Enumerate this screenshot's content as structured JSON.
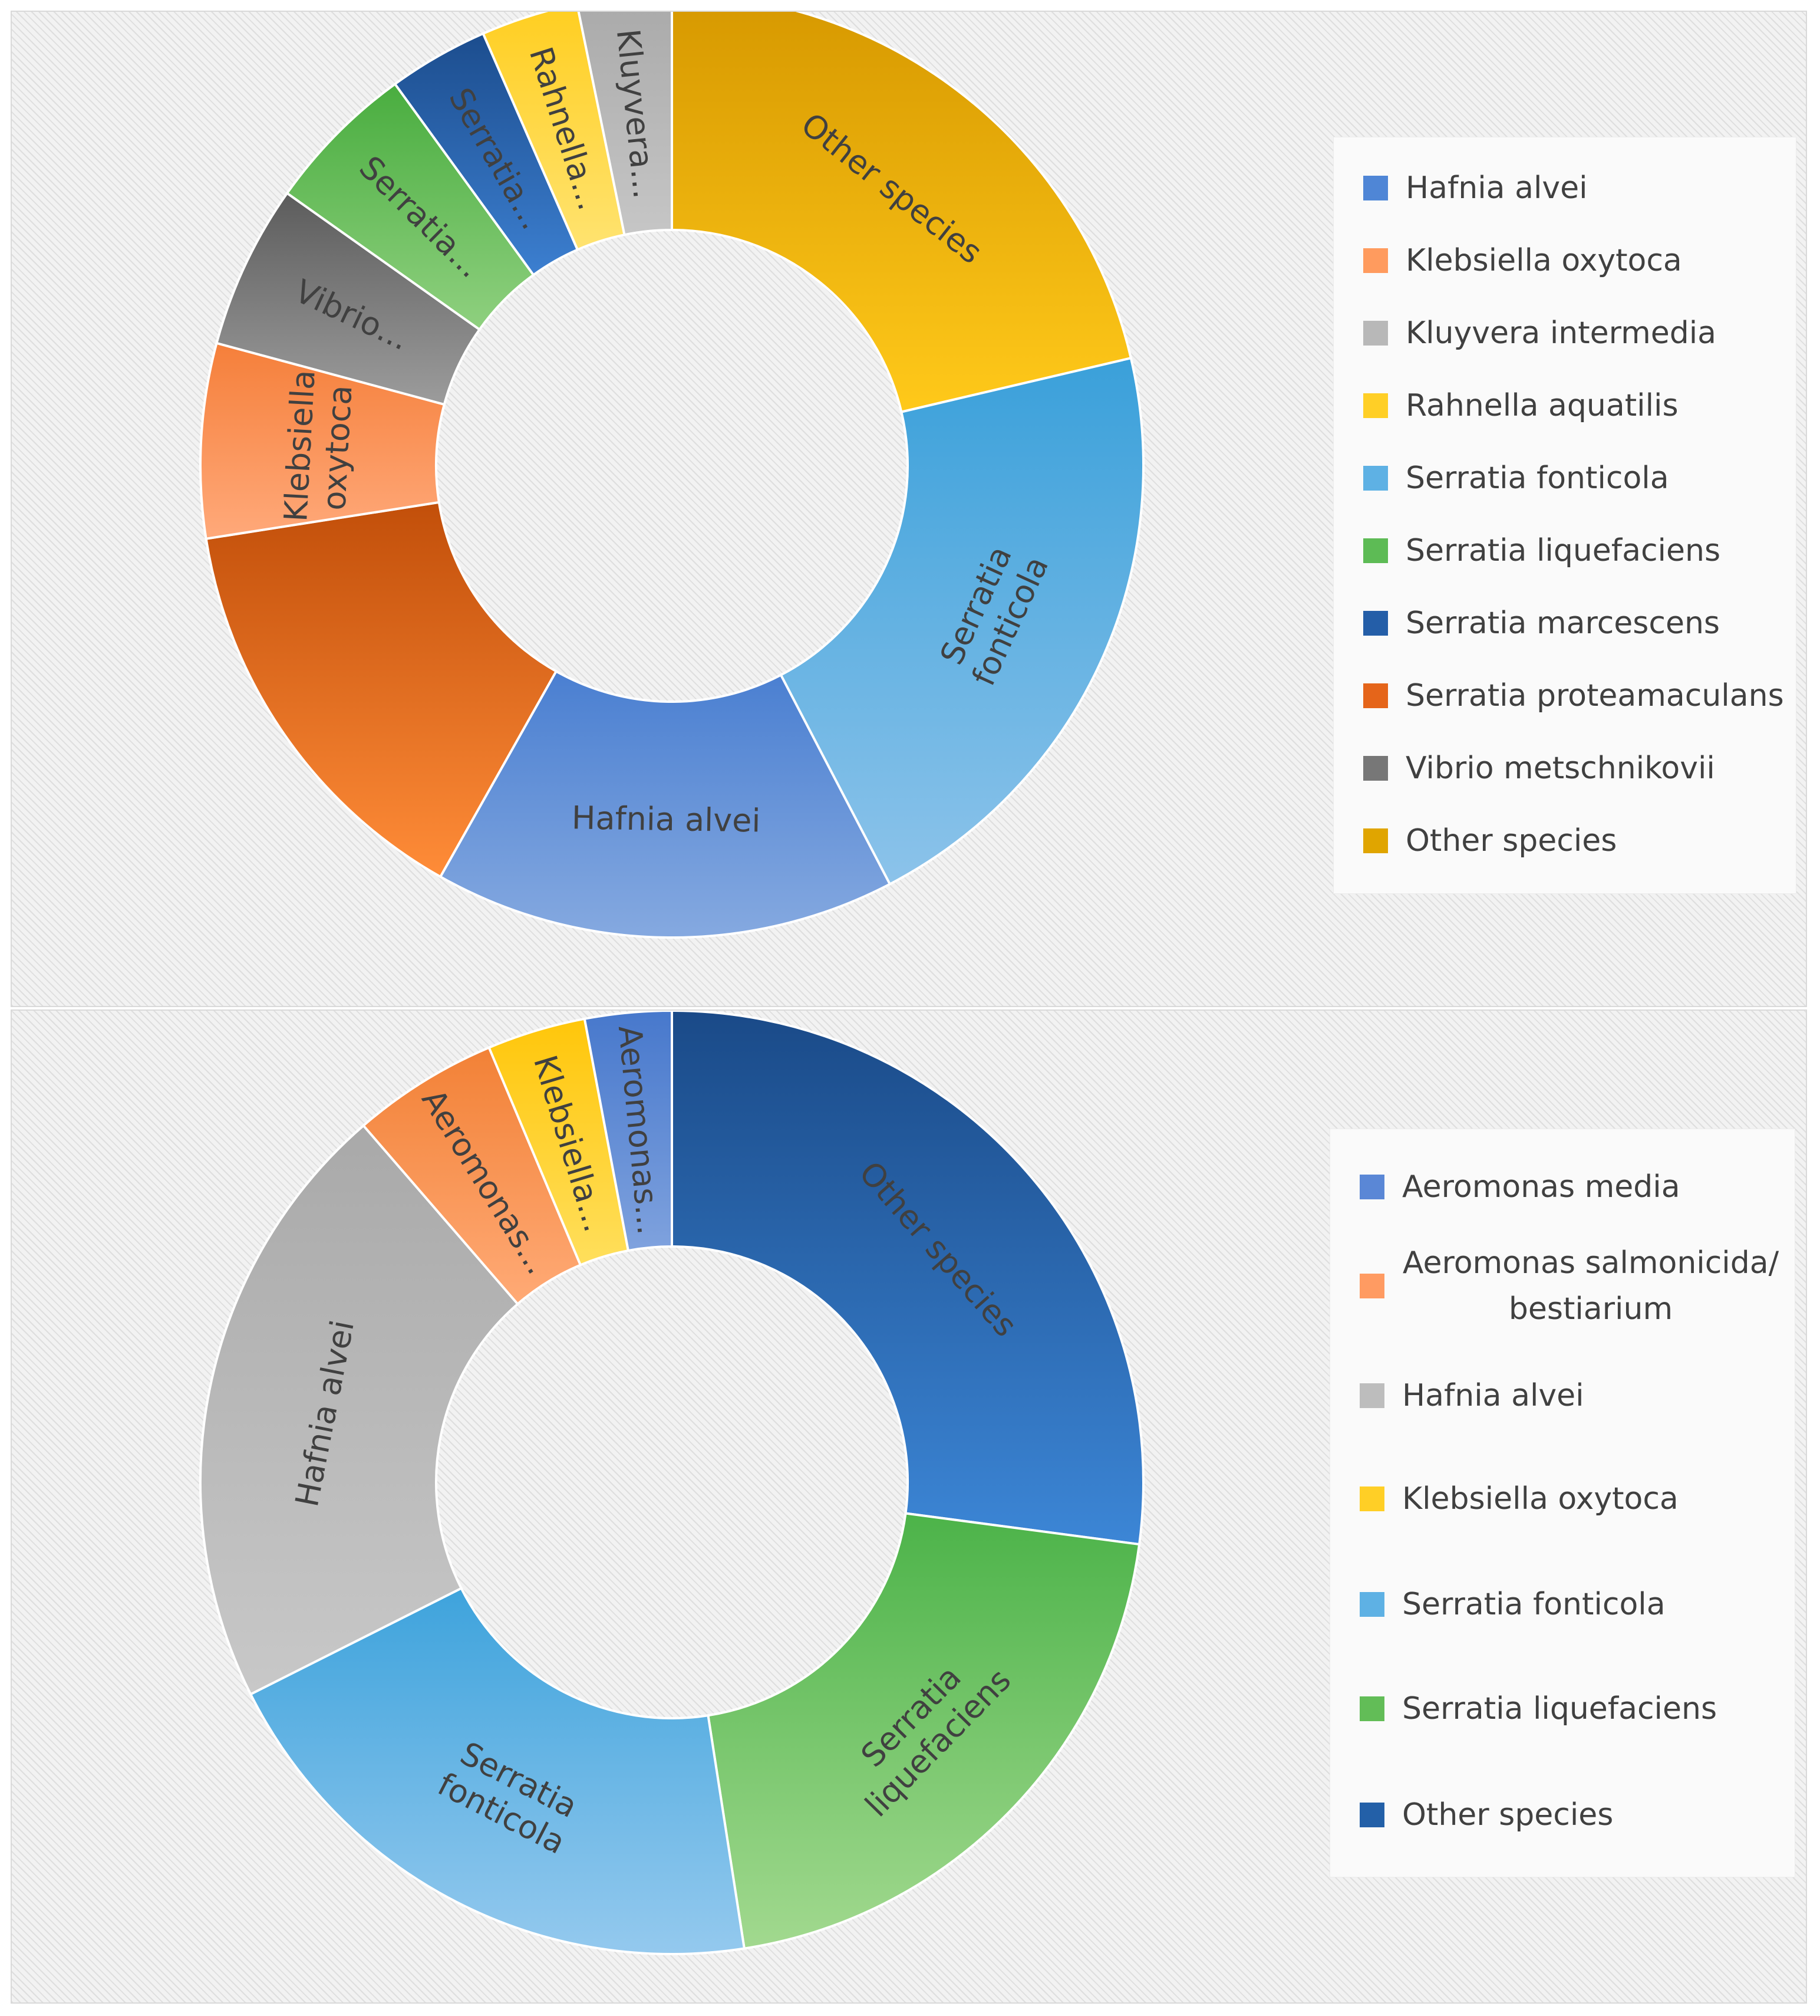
{
  "chart_data": [
    {
      "type": "pie",
      "variant": "donut",
      "title": "",
      "legend_position": "right",
      "slices": [
        {
          "label": "Other species",
          "value": 20.5,
          "slice_label": "Other species",
          "color_light": "#ffc91a",
          "color_dark": "#d69800"
        },
        {
          "label": "Serratia fonticola",
          "value": 20.2,
          "slice_label": "Serratia fonticola",
          "color_light": "#8cc3ea",
          "color_dark": "#3aa0da"
        },
        {
          "label": "Hafnia alvei",
          "value": 15.2,
          "slice_label": "Hafnia alvei",
          "color_light": "#85a9e0",
          "color_dark": "#4a7fd1"
        },
        {
          "label": "Serratia proteamaculans",
          "value": 13.8,
          "slice_label": "",
          "color_light": "#ff8c38",
          "color_dark": "#c24f0a"
        },
        {
          "label": "Klebsiella oxytoca",
          "value": 6.4,
          "slice_label": "Klebsiella oxytoca",
          "color_light": "#ffa97a",
          "color_dark": "#f57f3a"
        },
        {
          "label": "Vibrio metschnikovii",
          "value": 5.4,
          "slice_label": "Vibrio...",
          "color_light": "#9c9c9c",
          "color_dark": "#5c5c5c"
        },
        {
          "label": "Serratia liquefaciens",
          "value": 5.0,
          "slice_label": "Serratia...",
          "color_light": "#8fd07f",
          "color_dark": "#49ad3f"
        },
        {
          "label": "Serratia marcescens",
          "value": 3.3,
          "slice_label": "Serratia...",
          "color_light": "#3c7fd0",
          "color_dark": "#1c4d8e"
        },
        {
          "label": "Rahnella aquatilis",
          "value": 3.2,
          "slice_label": "Rahnella...",
          "color_light": "#ffe370",
          "color_dark": "#ffce20"
        },
        {
          "label": "Kluyvera intermedia",
          "value": 3.1,
          "slice_label": "Kluyvera...",
          "color_light": "#c6c6c6",
          "color_dark": "#a9a9a9"
        }
      ],
      "legend": [
        {
          "label": "Hafnia alvei",
          "color": "#4f86d6"
        },
        {
          "label": "Klebsiella oxytoca",
          "color": "#ff9b5e"
        },
        {
          "label": "Kluyvera intermedia",
          "color": "#b8b8b8"
        },
        {
          "label": "Rahnella aquatilis",
          "color": "#ffcf26"
        },
        {
          "label": "Serratia fonticola",
          "color": "#5eb1e4"
        },
        {
          "label": "Serratia liquefaciens",
          "color": "#5dbb55"
        },
        {
          "label": "Serratia marcescens",
          "color": "#245ea8"
        },
        {
          "label": "Serratia proteamaculans",
          "color": "#e5651a"
        },
        {
          "label": "Vibrio metschnikovii",
          "color": "#777777"
        },
        {
          "label": "Other species",
          "color": "#e0a500"
        }
      ]
    },
    {
      "type": "pie",
      "variant": "donut",
      "title": "",
      "legend_position": "right",
      "slices": [
        {
          "label": "Other species",
          "value": 26.5,
          "slice_label": "Other species",
          "color_light": "#3c86d6",
          "color_dark": "#1a4a88"
        },
        {
          "label": "Serratia liquefaciens",
          "value": 20.0,
          "slice_label": "Serratia liquefaciens",
          "color_light": "#a2d98f",
          "color_dark": "#4cb349"
        },
        {
          "label": "Serratia fonticola",
          "value": 19.6,
          "slice_label": "Serratia fonticola",
          "color_light": "#94c9ee",
          "color_dark": "#3ea3dc"
        },
        {
          "label": "Hafnia alvei",
          "value": 20.6,
          "slice_label": "Hafnia alvei",
          "color_light": "#c8c8c8",
          "color_dark": "#a9a9a9"
        },
        {
          "label": "Aeromonas salmonicida/bestiarium",
          "value": 4.9,
          "slice_label": "Aeromonas...",
          "color_light": "#ffaa76",
          "color_dark": "#f28136"
        },
        {
          "label": "Klebsiella oxytoca",
          "value": 3.3,
          "slice_label": "Klebsiella...",
          "color_light": "#ffdf5c",
          "color_dark": "#ffc60a"
        },
        {
          "label": "Aeromonas media",
          "value": 2.9,
          "slice_label": "Aeromonas...",
          "color_light": "#7fa2de",
          "color_dark": "#4778cc"
        }
      ],
      "legend": [
        {
          "label": "Aeromonas media",
          "color": "#5a87d6"
        },
        {
          "label": "Aeromonas salmonicida/ bestiarium",
          "color": "#ff9b62"
        },
        {
          "label": "Hafnia alvei",
          "color": "#bdbdbd"
        },
        {
          "label": "Klebsiella oxytoca",
          "color": "#ffcf26"
        },
        {
          "label": "Serratia fonticola",
          "color": "#5eb1e4"
        },
        {
          "label": "Serratia liquefaciens",
          "color": "#62bd57"
        },
        {
          "label": "Other species",
          "color": "#2360a8"
        }
      ]
    }
  ]
}
